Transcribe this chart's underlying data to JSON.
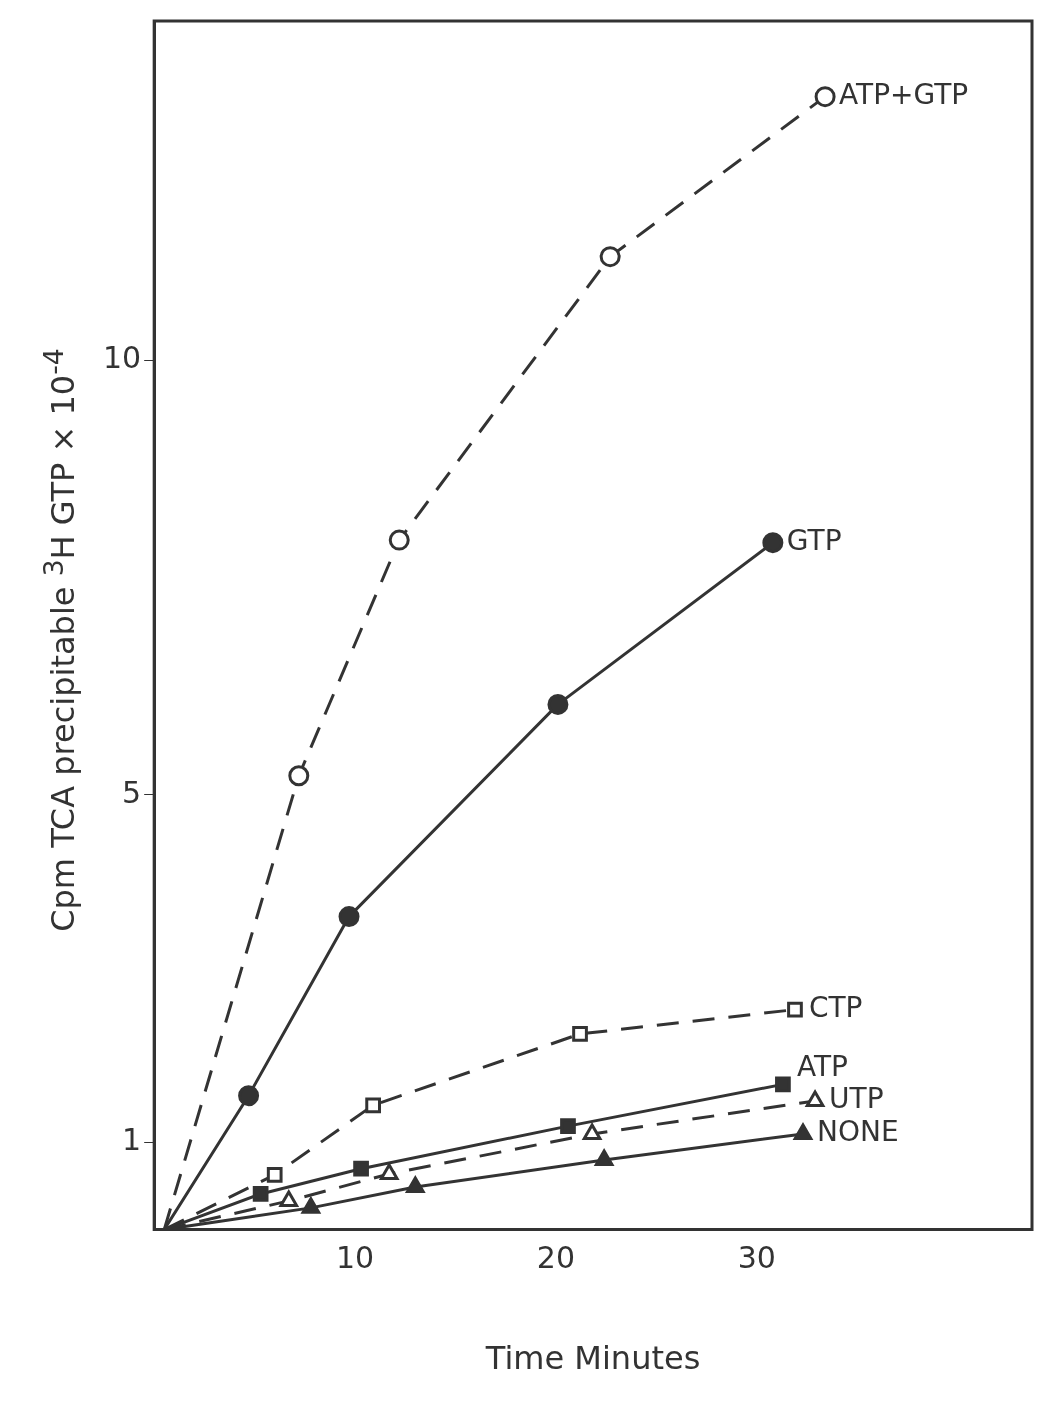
{
  "chart_data": {
    "type": "line",
    "xlabel": "Time Minutes",
    "ylabel": "Cpm TCA precipitable $^{3}$H GTP × 10$^{-4}$",
    "xlim": [
      0,
      43.7
    ],
    "ylim": [
      0,
      13.9
    ],
    "xticks": [
      10,
      20,
      30
    ],
    "yticks": [
      1,
      5,
      10
    ],
    "grid": false,
    "legend": false,
    "series": [
      {
        "name": "ATP+GTP",
        "color": "#333333",
        "marker": "circle",
        "line_style": "dashed",
        "x": [
          0.5,
          7.2,
          12.2,
          22.7,
          33.4
        ],
        "values": [
          0,
          5.22,
          7.93,
          11.19,
          13.03
        ]
      },
      {
        "name": "GTP",
        "color": "#333333",
        "marker": "circle",
        "line_style": "solid",
        "x": [
          0.5,
          4.7,
          9.7,
          20.1,
          30.8
        ],
        "values": [
          0,
          1.54,
          3.6,
          6.04,
          7.9
        ]
      },
      {
        "name": "CTP",
        "color": "#333333",
        "marker": "square",
        "line_style": "dashed",
        "x": [
          0.5,
          6.0,
          10.9,
          21.2,
          31.9
        ],
        "values": [
          0,
          0.63,
          1.43,
          2.25,
          2.53
        ]
      },
      {
        "name": "ATP",
        "color": "#333333",
        "marker": "square",
        "line_style": "solid",
        "x": [
          0.5,
          5.3,
          10.3,
          20.6,
          31.3
        ],
        "values": [
          0,
          0.41,
          0.7,
          1.19,
          1.67
        ]
      },
      {
        "name": "UTP",
        "color": "#333333",
        "marker": "triangle",
        "line_style": "dashed",
        "x": [
          0.5,
          6.7,
          11.7,
          21.8,
          32.9
        ],
        "values": [
          0,
          0.33,
          0.64,
          1.1,
          1.48
        ]
      },
      {
        "name": "NONE",
        "color": "#333333",
        "marker": "triangle",
        "line_style": "solid",
        "x": [
          0.5,
          7.8,
          13.0,
          22.4,
          32.3
        ],
        "values": [
          0,
          0.25,
          0.49,
          0.8,
          1.1
        ]
      }
    ]
  }
}
